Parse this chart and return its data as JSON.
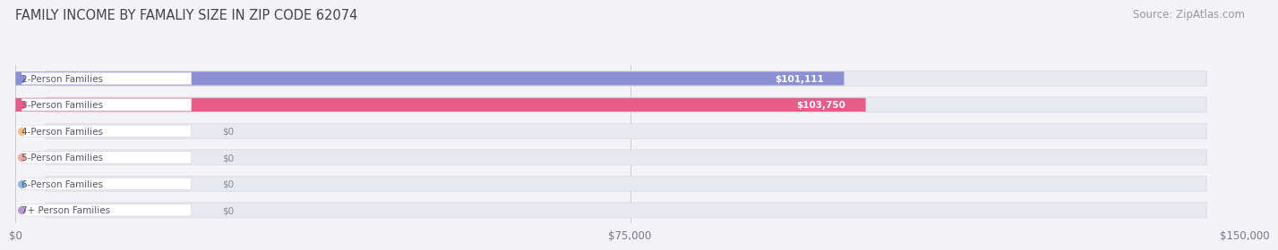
{
  "title": "FAMILY INCOME BY FAMALIY SIZE IN ZIP CODE 62074",
  "source": "Source: ZipAtlas.com",
  "categories": [
    "2-Person Families",
    "3-Person Families",
    "4-Person Families",
    "5-Person Families",
    "6-Person Families",
    "7+ Person Families"
  ],
  "values": [
    101111,
    103750,
    0,
    0,
    0,
    0
  ],
  "bar_colors": [
    "#8b8fd4",
    "#e85c8a",
    "#f5c080",
    "#f0a8a0",
    "#90b8e0",
    "#b898d0"
  ],
  "label_dot_colors": [
    "#8b8fd4",
    "#e85c8a",
    "#f5c080",
    "#f0a8a0",
    "#90b8e0",
    "#b898d0"
  ],
  "label_text_colors": [
    "#5555aa",
    "#cc3366",
    "#c08844",
    "#c07070",
    "#5588bb",
    "#8866aa"
  ],
  "value_labels": [
    "$101,111",
    "$103,750",
    "$0",
    "$0",
    "$0",
    "$0"
  ],
  "xlim_max": 150000,
  "xticks": [
    0,
    75000,
    150000
  ],
  "xticklabels": [
    "$0",
    "$75,000",
    "$150,000"
  ],
  "background_color": "#f4f4f8",
  "bar_bg_color": "#e8e8ef",
  "bar_bg_border": "#dddde8",
  "title_fontsize": 10.5,
  "source_fontsize": 8.5,
  "title_color": "#444444",
  "source_color": "#999999"
}
